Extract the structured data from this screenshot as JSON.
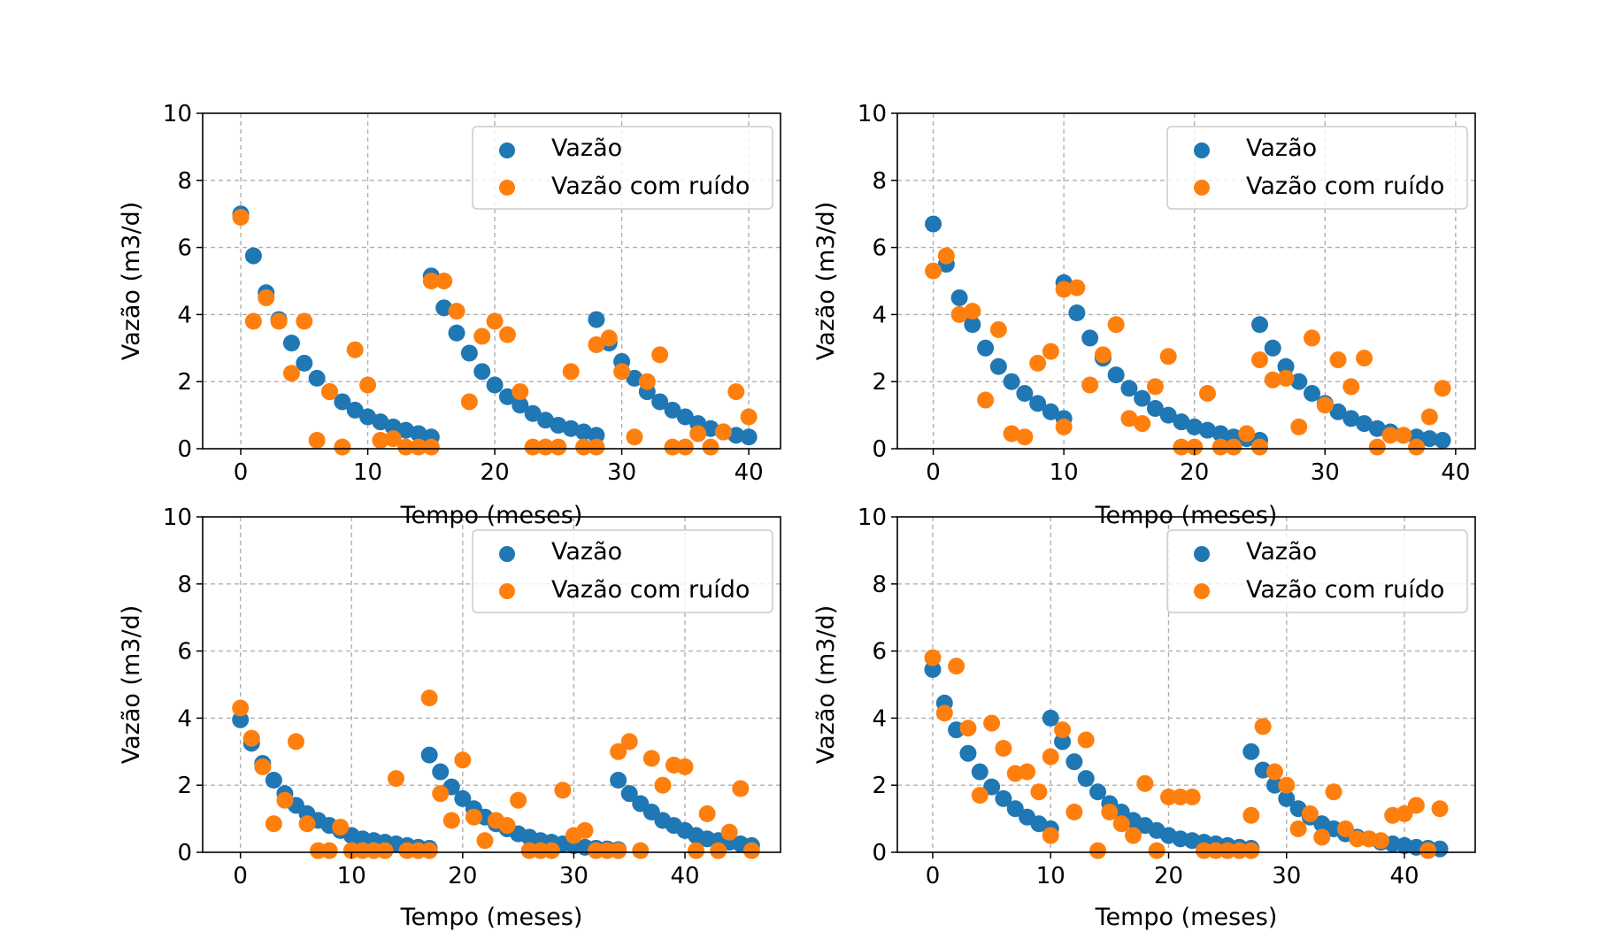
{
  "figure": {
    "background": "#ffffff",
    "series_colors": [
      "#1f77b4",
      "#ff7f0e"
    ],
    "grid_color": "#b0b0b0"
  },
  "chart_data": [
    {
      "type": "scatter",
      "title": "",
      "xlabel": "Tempo (meses)",
      "ylabel": "Vazão (m3/d)",
      "xlim": [
        -3,
        42.5
      ],
      "ylim": [
        0,
        10
      ],
      "xticks": [
        0,
        10,
        20,
        30,
        40
      ],
      "yticks": [
        0,
        2,
        4,
        6,
        8,
        10
      ],
      "grid": true,
      "legend": "top-right",
      "series": [
        {
          "name": "Vazão",
          "color": "#1f77b4",
          "x": [
            0,
            1,
            2,
            3,
            4,
            5,
            6,
            7,
            8,
            9,
            10,
            11,
            12,
            13,
            14,
            15,
            15,
            16,
            17,
            18,
            19,
            20,
            21,
            22,
            23,
            24,
            25,
            26,
            27,
            28,
            28,
            29,
            30,
            31,
            32,
            33,
            34,
            35,
            36,
            37,
            38,
            39,
            40
          ],
          "y": [
            7.0,
            5.75,
            4.65,
            3.85,
            3.15,
            2.55,
            2.1,
            1.7,
            1.4,
            1.15,
            0.95,
            0.8,
            0.65,
            0.55,
            0.45,
            0.35,
            5.15,
            4.2,
            3.45,
            2.85,
            2.3,
            1.9,
            1.55,
            1.3,
            1.05,
            0.85,
            0.7,
            0.6,
            0.5,
            0.4,
            3.85,
            3.15,
            2.6,
            2.1,
            1.7,
            1.4,
            1.15,
            0.95,
            0.75,
            0.6,
            0.5,
            0.4,
            0.35
          ]
        },
        {
          "name": "Vazão com ruído",
          "color": "#ff7f0e",
          "x": [
            0,
            1,
            2,
            3,
            4,
            5,
            6,
            7,
            8,
            9,
            10,
            11,
            12,
            13,
            14,
            15,
            15,
            16,
            17,
            18,
            19,
            20,
            21,
            22,
            23,
            24,
            25,
            26,
            27,
            28,
            28,
            29,
            30,
            31,
            32,
            33,
            34,
            35,
            36,
            37,
            38,
            39,
            40
          ],
          "y": [
            6.9,
            3.8,
            4.5,
            3.8,
            2.25,
            3.8,
            0.25,
            1.7,
            0.05,
            2.95,
            1.9,
            0.25,
            0.3,
            0.05,
            0.05,
            0.05,
            5.0,
            5.0,
            4.1,
            1.4,
            3.35,
            3.8,
            3.4,
            1.7,
            0.05,
            0.05,
            0.05,
            2.3,
            0.05,
            0.05,
            3.1,
            3.3,
            2.3,
            0.35,
            2.0,
            2.8,
            0.05,
            0.05,
            0.45,
            0.05,
            0.5,
            1.7,
            0.95
          ]
        }
      ]
    },
    {
      "type": "scatter",
      "title": "",
      "xlabel": "Tempo (meses)",
      "ylabel": "Vazão (m3/d)",
      "xlim": [
        -2.75,
        41.5
      ],
      "ylim": [
        0,
        10
      ],
      "xticks": [
        0,
        10,
        20,
        30,
        40
      ],
      "yticks": [
        0,
        2,
        4,
        6,
        8,
        10
      ],
      "grid": true,
      "legend": "top-right",
      "series": [
        {
          "name": "Vazão",
          "color": "#1f77b4",
          "x": [
            0,
            1,
            2,
            3,
            4,
            5,
            6,
            7,
            8,
            9,
            10,
            10,
            11,
            12,
            13,
            14,
            15,
            16,
            17,
            18,
            19,
            20,
            21,
            22,
            23,
            24,
            25,
            25,
            26,
            27,
            28,
            29,
            30,
            31,
            32,
            33,
            34,
            35,
            36,
            37,
            38,
            39
          ],
          "y": [
            6.7,
            5.5,
            4.5,
            3.7,
            3.0,
            2.45,
            2.0,
            1.65,
            1.35,
            1.1,
            0.9,
            4.95,
            4.05,
            3.3,
            2.7,
            2.2,
            1.8,
            1.5,
            1.2,
            1.0,
            0.8,
            0.65,
            0.55,
            0.45,
            0.35,
            0.3,
            0.25,
            3.7,
            3.0,
            2.45,
            2.0,
            1.65,
            1.35,
            1.1,
            0.9,
            0.75,
            0.6,
            0.5,
            0.4,
            0.35,
            0.3,
            0.25
          ]
        },
        {
          "name": "Vazão com ruído",
          "color": "#ff7f0e",
          "x": [
            0,
            1,
            2,
            3,
            4,
            5,
            6,
            7,
            8,
            9,
            10,
            10,
            11,
            12,
            13,
            14,
            15,
            16,
            17,
            18,
            19,
            20,
            21,
            22,
            23,
            24,
            25,
            25,
            26,
            27,
            28,
            29,
            30,
            31,
            32,
            33,
            34,
            35,
            36,
            37,
            38,
            39
          ],
          "y": [
            5.3,
            5.75,
            4.0,
            4.1,
            1.45,
            3.55,
            0.45,
            0.35,
            2.55,
            2.9,
            0.65,
            4.75,
            4.8,
            1.9,
            2.8,
            3.7,
            0.9,
            0.75,
            1.85,
            2.75,
            0.05,
            0.05,
            1.65,
            0.05,
            0.05,
            0.45,
            0.05,
            2.65,
            2.05,
            2.1,
            0.65,
            3.3,
            1.3,
            2.65,
            1.85,
            2.7,
            0.05,
            0.4,
            0.4,
            0.05,
            0.95,
            1.8
          ]
        }
      ]
    },
    {
      "type": "scatter",
      "title": "",
      "xlabel": "Tempo (meses)",
      "ylabel": "Vazão (m3/d)",
      "xlim": [
        -3.4,
        48.6
      ],
      "ylim": [
        0,
        10
      ],
      "xticks": [
        0,
        10,
        20,
        30,
        40
      ],
      "yticks": [
        0,
        2,
        4,
        6,
        8,
        10
      ],
      "grid": true,
      "legend": "top-right",
      "series": [
        {
          "name": "Vazão",
          "color": "#1f77b4",
          "x": [
            0,
            1,
            2,
            3,
            4,
            5,
            6,
            7,
            8,
            9,
            10,
            11,
            12,
            13,
            14,
            15,
            16,
            17,
            17,
            18,
            19,
            20,
            21,
            22,
            23,
            24,
            25,
            26,
            27,
            28,
            29,
            30,
            31,
            32,
            33,
            34,
            34,
            35,
            36,
            37,
            38,
            39,
            40,
            41,
            42,
            43,
            44,
            45,
            46
          ],
          "y": [
            3.95,
            3.25,
            2.65,
            2.15,
            1.75,
            1.4,
            1.15,
            0.95,
            0.8,
            0.65,
            0.5,
            0.4,
            0.35,
            0.3,
            0.25,
            0.2,
            0.15,
            0.12,
            2.9,
            2.4,
            1.95,
            1.6,
            1.3,
            1.05,
            0.85,
            0.7,
            0.55,
            0.45,
            0.35,
            0.3,
            0.25,
            0.2,
            0.15,
            0.12,
            0.1,
            0.08,
            2.15,
            1.75,
            1.45,
            1.2,
            0.95,
            0.8,
            0.65,
            0.5,
            0.4,
            0.35,
            0.3,
            0.25,
            0.2
          ]
        },
        {
          "name": "Vazão com ruído",
          "color": "#ff7f0e",
          "x": [
            0,
            1,
            2,
            3,
            4,
            5,
            6,
            7,
            8,
            9,
            10,
            11,
            12,
            13,
            14,
            15,
            16,
            17,
            17,
            18,
            19,
            20,
            21,
            22,
            23,
            24,
            25,
            26,
            27,
            28,
            29,
            30,
            31,
            32,
            33,
            34,
            34,
            35,
            36,
            37,
            38,
            39,
            40,
            41,
            42,
            43,
            44,
            45,
            46
          ],
          "y": [
            4.3,
            3.4,
            2.55,
            0.85,
            1.55,
            3.3,
            0.85,
            0.05,
            0.05,
            0.75,
            0.05,
            0.05,
            0.05,
            0.05,
            2.2,
            0.05,
            0.05,
            0.05,
            4.6,
            1.75,
            0.95,
            2.75,
            1.05,
            0.35,
            0.95,
            0.8,
            1.55,
            0.05,
            0.05,
            0.05,
            1.85,
            0.5,
            0.65,
            0.05,
            0.05,
            0.05,
            3.0,
            3.3,
            0.05,
            2.8,
            2.0,
            2.6,
            2.55,
            0.05,
            1.15,
            0.05,
            0.6,
            1.9,
            0.05
          ]
        }
      ]
    },
    {
      "type": "scatter",
      "title": "",
      "xlabel": "Tempo (meses)",
      "ylabel": "Vazão (m3/d)",
      "xlim": [
        -3,
        46
      ],
      "ylim": [
        0,
        10
      ],
      "xticks": [
        0,
        10,
        20,
        30,
        40
      ],
      "yticks": [
        0,
        2,
        4,
        6,
        8,
        10
      ],
      "grid": true,
      "legend": "top-right",
      "series": [
        {
          "name": "Vazão",
          "color": "#1f77b4",
          "x": [
            0,
            1,
            2,
            3,
            4,
            5,
            6,
            7,
            8,
            9,
            10,
            10,
            11,
            12,
            13,
            14,
            15,
            16,
            17,
            18,
            19,
            20,
            21,
            22,
            23,
            24,
            25,
            26,
            27,
            27,
            28,
            29,
            30,
            31,
            32,
            33,
            34,
            35,
            36,
            37,
            38,
            39,
            40,
            41,
            42,
            43
          ],
          "y": [
            5.45,
            4.45,
            3.65,
            2.95,
            2.4,
            1.95,
            1.6,
            1.3,
            1.05,
            0.85,
            0.7,
            4.0,
            3.3,
            2.7,
            2.2,
            1.8,
            1.45,
            1.2,
            0.95,
            0.8,
            0.65,
            0.5,
            0.4,
            0.35,
            0.3,
            0.25,
            0.2,
            0.15,
            0.12,
            3.0,
            2.45,
            2.0,
            1.6,
            1.3,
            1.05,
            0.85,
            0.7,
            0.55,
            0.45,
            0.4,
            0.3,
            0.25,
            0.2,
            0.15,
            0.12,
            0.1
          ]
        },
        {
          "name": "Vazão com ruído",
          "color": "#ff7f0e",
          "x": [
            0,
            1,
            2,
            3,
            4,
            5,
            6,
            7,
            8,
            9,
            10,
            10,
            11,
            12,
            13,
            14,
            15,
            16,
            17,
            18,
            19,
            20,
            21,
            22,
            23,
            24,
            25,
            26,
            27,
            27,
            28,
            29,
            30,
            31,
            32,
            33,
            34,
            35,
            36,
            37,
            38,
            39,
            40,
            41,
            42,
            43
          ],
          "y": [
            5.8,
            4.15,
            5.55,
            3.7,
            1.7,
            3.85,
            3.1,
            2.35,
            2.4,
            1.8,
            2.85,
            0.5,
            3.65,
            1.2,
            3.35,
            0.05,
            1.2,
            0.85,
            0.5,
            2.05,
            0.05,
            1.65,
            1.65,
            1.65,
            0.05,
            0.05,
            0.05,
            0.05,
            0.05,
            1.1,
            3.75,
            2.4,
            2.0,
            0.7,
            1.15,
            0.45,
            1.8,
            0.7,
            0.4,
            0.4,
            0.35,
            1.1,
            1.15,
            1.4,
            0.05,
            1.3
          ]
        }
      ]
    }
  ]
}
